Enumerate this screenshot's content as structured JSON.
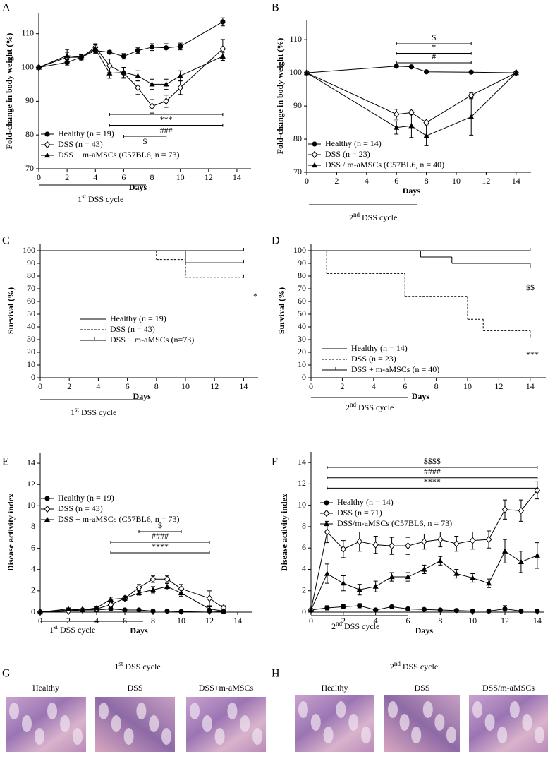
{
  "chart_data": [
    {
      "type": "line",
      "panel": "A",
      "y_label": "Fold-change in body weight (%)",
      "x_label": "Days",
      "cycle": {
        "number": "1",
        "suffix": "st",
        "text": "DSS cycle"
      },
      "x": [
        0,
        2,
        3,
        4,
        5,
        6,
        7,
        8,
        9,
        10,
        13
      ],
      "xlim": [
        0,
        15
      ],
      "xticks": [
        0,
        2,
        4,
        6,
        8,
        10,
        12,
        14
      ],
      "ylim": [
        70,
        116
      ],
      "yticks": [
        70,
        80,
        90,
        100,
        110
      ],
      "legend": "lower left",
      "series": [
        {
          "name": "Healthy (n = 19)",
          "color": "#000000",
          "marker": "circle",
          "values": [
            100,
            101.5,
            103,
            105,
            104.5,
            103.3,
            105,
            106,
            105.8,
            106.2,
            113.5
          ],
          "errors": [
            0,
            0.8,
            0.5,
            0.8,
            0.5,
            0.8,
            0.8,
            1,
            1.2,
            1,
            1.2
          ]
        },
        {
          "name": "DSS (n = 43)",
          "color": "#000000",
          "marker": "diamond",
          "values": [
            100,
            103,
            103,
            106,
            100.5,
            98.3,
            94,
            88.5,
            90,
            94,
            105.5
          ],
          "errors": [
            0,
            1.5,
            0.8,
            1,
            2,
            1.5,
            2,
            2,
            1.8,
            2,
            2.8
          ]
        },
        {
          "name": "DSS + m-aMSCs (C57BL6, n = 73)",
          "color": "#000000",
          "marker": "triangle",
          "values": [
            100,
            103.5,
            103,
            105.5,
            98.3,
            98.5,
            97.5,
            95,
            95,
            97.5,
            103.3
          ],
          "errors": [
            0,
            1.8,
            0.8,
            1.2,
            1.5,
            1.5,
            1.5,
            1.5,
            1.5,
            1.5,
            1.2
          ]
        }
      ],
      "annotations": [
        {
          "text": "***",
          "x": [
            5,
            13
          ]
        },
        {
          "text": "###",
          "x": [
            5,
            13
          ]
        },
        {
          "text": "$",
          "x": [
            6,
            9
          ]
        }
      ]
    },
    {
      "type": "line",
      "panel": "B",
      "y_label": "Fold-change in body weight (%)",
      "x_label": "Days",
      "cycle": {
        "number": "2",
        "suffix": "nd",
        "text": "DSS cycle"
      },
      "x": [
        0,
        6,
        7,
        8,
        11,
        14
      ],
      "xlim": [
        0,
        15
      ],
      "xticks": [
        0,
        2,
        4,
        6,
        8,
        10,
        12,
        14
      ],
      "ylim": [
        70,
        116
      ],
      "yticks": [
        70,
        80,
        90,
        100,
        110
      ],
      "legend": "lower left",
      "series": [
        {
          "name": "Healthy (n = 14)",
          "color": "#000000",
          "marker": "circle",
          "values": [
            100,
            102,
            101.8,
            100.3,
            100.2,
            100
          ],
          "errors": [
            0,
            0.3,
            0.3,
            0.3,
            0.3,
            0.3
          ]
        },
        {
          "name": "DSS (n = 23)",
          "color": "#000000",
          "marker": "diamond",
          "values": [
            100,
            87.5,
            88,
            85,
            93.2,
            100
          ],
          "errors": [
            0,
            1.5,
            0.5,
            0.5,
            0.7,
            0.3
          ]
        },
        {
          "name": "DSS / m-aMSCs (C57BL6, n = 40)",
          "color": "#000000",
          "marker": "triangle",
          "values": [
            100,
            83.5,
            84,
            81,
            86.7,
            100
          ],
          "errors": [
            0,
            2,
            3.5,
            3,
            5.5,
            0.3
          ]
        }
      ],
      "annotations": [
        {
          "text": "$",
          "x": [
            6,
            11
          ]
        },
        {
          "text": "*",
          "x": [
            6,
            11
          ]
        },
        {
          "text": "#",
          "x": [
            6,
            11
          ]
        }
      ]
    },
    {
      "type": "step",
      "panel": "C",
      "y_label": "Survival (%)",
      "x_label": "Days",
      "cycle": {
        "number": "1",
        "suffix": "st",
        "text": "DSS cycle"
      },
      "xlim": [
        0,
        15
      ],
      "xticks": [
        0,
        2,
        4,
        6,
        8,
        10,
        12,
        14
      ],
      "ylim": [
        0,
        105
      ],
      "yticks": [
        0,
        10,
        20,
        30,
        40,
        50,
        60,
        70,
        80,
        90,
        100
      ],
      "legend": "center left",
      "series": [
        {
          "name": "Healthy (n = 19)",
          "color": "#000000",
          "dash": false,
          "x": [
            0,
            14
          ],
          "values": [
            100,
            100
          ]
        },
        {
          "name": "DSS (n = 43)",
          "color": "#000000",
          "dash": true,
          "x": [
            0,
            8,
            10,
            14
          ],
          "values": [
            100,
            93,
            79,
            79
          ]
        },
        {
          "name": "DSS + m-aMSCs (n=73)",
          "color": "#000000",
          "dash": false,
          "x": [
            0,
            10,
            14
          ],
          "values": [
            100,
            90.5,
            90.5
          ]
        }
      ],
      "annotations": [
        {
          "text": "*"
        }
      ]
    },
    {
      "type": "step",
      "panel": "D",
      "y_label": "Survival (%)",
      "x_label": "Days",
      "cycle": {
        "number": "2",
        "suffix": "nd",
        "text": "DSS cycle"
      },
      "xlim": [
        0,
        15
      ],
      "xticks": [
        0,
        2,
        4,
        6,
        8,
        10,
        12,
        14
      ],
      "ylim": [
        0,
        105
      ],
      "yticks": [
        0,
        10,
        20,
        30,
        40,
        50,
        60,
        70,
        80,
        90,
        100
      ],
      "legend": "lower left",
      "series": [
        {
          "name": "Healthy (n = 14)",
          "color": "#000000",
          "dash": false,
          "x": [
            0,
            14
          ],
          "values": [
            100,
            100
          ]
        },
        {
          "name": "DSS (n = 23)",
          "color": "#000000",
          "dash": true,
          "x": [
            0,
            1,
            6,
            10,
            11,
            14
          ],
          "values": [
            100,
            82,
            64,
            46,
            37,
            32
          ]
        },
        {
          "name": "DSS + m-aMSCs (n = 40)",
          "color": "#000000",
          "dash": false,
          "x": [
            0,
            7,
            9,
            14
          ],
          "values": [
            100,
            95,
            90,
            87
          ]
        }
      ],
      "annotations": [
        {
          "text": "$$"
        },
        {
          "text": "***"
        }
      ]
    },
    {
      "type": "line",
      "panel": "E",
      "y_label": "Disease activity index",
      "x_label": "Days",
      "cycle": {
        "number": "1",
        "suffix": "st",
        "text": "DSS cycle"
      },
      "x": [
        0,
        2,
        3,
        4,
        5,
        6,
        7,
        8,
        9,
        10,
        12,
        13
      ],
      "xlim": [
        0,
        15
      ],
      "xticks": [
        0,
        2,
        4,
        6,
        8,
        10,
        12,
        14
      ],
      "ylim": [
        0,
        15
      ],
      "yticks": [
        0,
        2,
        4,
        6,
        8,
        10,
        12,
        14
      ],
      "legend": "center left",
      "series": [
        {
          "name": "Healthy (n = 19)",
          "color": "#000000",
          "marker": "circle",
          "values": [
            0,
            0.2,
            0.2,
            0.2,
            0.3,
            0.2,
            0.2,
            0.1,
            0.1,
            0.05,
            0.1,
            0.05
          ],
          "errors": [
            0,
            0.2,
            0.1,
            0.1,
            0.1,
            0.1,
            0.1,
            0.1,
            0.1,
            0.05,
            0.1,
            0.05
          ]
        },
        {
          "name": "DSS (n = 43)",
          "color": "#000000",
          "marker": "diamond",
          "values": [
            0,
            0.1,
            0.2,
            0.3,
            0.7,
            1.3,
            2.3,
            3.1,
            3.1,
            2.2,
            1.3,
            0.4
          ],
          "errors": [
            0,
            0.1,
            0.1,
            0.1,
            0.2,
            0.2,
            0.3,
            0.3,
            0.3,
            0.4,
            0.7,
            0.2
          ]
        },
        {
          "name": "DSS + m-aMSCs (C57BL6, n = 73)",
          "color": "#000000",
          "marker": "triangle",
          "values": [
            0,
            0.3,
            0.2,
            0.4,
            1.2,
            1.3,
            1.8,
            2.1,
            2.4,
            1.8,
            0.3,
            0.1
          ],
          "errors": [
            0,
            0.1,
            0.1,
            0.1,
            0.2,
            0.2,
            0.2,
            0.3,
            0.3,
            0.3,
            0.2,
            0.1
          ]
        }
      ],
      "annotations": [
        {
          "text": "$",
          "x": [
            7,
            10
          ]
        },
        {
          "text": "####",
          "x": [
            5,
            12
          ]
        },
        {
          "text": "****",
          "x": [
            5,
            12
          ]
        }
      ]
    },
    {
      "type": "line",
      "panel": "F",
      "y_label": "Disease activity index",
      "x_label": "Days",
      "cycle": {
        "number": "2",
        "suffix": "nd",
        "text": "DSS cycle"
      },
      "x": [
        0,
        1,
        2,
        3,
        4,
        5,
        6,
        7,
        8,
        9,
        10,
        11,
        12,
        13,
        14
      ],
      "xlim": [
        0,
        14.4
      ],
      "xticks": [
        0,
        2,
        4,
        6,
        8,
        10,
        12,
        14
      ],
      "ylim": [
        0,
        15
      ],
      "yticks": [
        0,
        2,
        4,
        6,
        8,
        10,
        12,
        14
      ],
      "legend": "upper left",
      "series": [
        {
          "name": "Healthy (n = 14)",
          "color": "#000000",
          "marker": "circle",
          "values": [
            0.2,
            0.4,
            0.5,
            0.6,
            0.2,
            0.5,
            0.3,
            0.25,
            0.2,
            0.15,
            0.1,
            0.1,
            0.3,
            0.1,
            0.1
          ],
          "errors": [
            0.1,
            0.2,
            0.2,
            0.2,
            0.1,
            0.1,
            0.1,
            0.1,
            0.1,
            0.1,
            0.1,
            0.1,
            0.3,
            0.1,
            0.1
          ]
        },
        {
          "name": "DSS (n = 71)",
          "color": "#000000",
          "marker": "diamond",
          "values": [
            0.2,
            7.5,
            5.9,
            6.6,
            6.3,
            6.2,
            6.2,
            6.6,
            6.8,
            6.4,
            6.7,
            6.8,
            9.6,
            9.5,
            11.4
          ],
          "errors": [
            0.1,
            1,
            0.8,
            0.9,
            0.8,
            0.8,
            0.8,
            0.7,
            0.7,
            0.7,
            0.8,
            0.8,
            0.9,
            1,
            0.8
          ]
        },
        {
          "name": "DSS/m-aMSCs (C57BL6, n = 73)",
          "color": "#000000",
          "marker": "triangle",
          "values": [
            0.2,
            3.6,
            2.7,
            2.1,
            2.4,
            3.3,
            3.3,
            4.0,
            4.8,
            3.6,
            3.2,
            2.7,
            5.7,
            4.7,
            5.3
          ],
          "errors": [
            0.1,
            0.9,
            0.7,
            0.5,
            0.5,
            0.4,
            0.4,
            0.4,
            0.4,
            0.4,
            0.4,
            0.4,
            1.1,
            1,
            1.2
          ]
        }
      ],
      "annotations": [
        {
          "text": "$$$$",
          "x": [
            1,
            14
          ]
        },
        {
          "text": "####",
          "x": [
            1,
            14
          ]
        },
        {
          "text": "****",
          "x": [
            1,
            14
          ]
        }
      ]
    }
  ],
  "histology": [
    {
      "panel": "G",
      "cycle": {
        "number": "1",
        "suffix": "st",
        "text": "DSS cycle"
      },
      "labels": [
        "Healthy",
        "DSS",
        "DSS+m-aMSCs"
      ]
    },
    {
      "panel": "H",
      "cycle": {
        "number": "2",
        "suffix": "nd",
        "text": "DSS cycle"
      },
      "labels": [
        "Healthy",
        "DSS",
        "DSS/m-aMSCs"
      ]
    }
  ]
}
